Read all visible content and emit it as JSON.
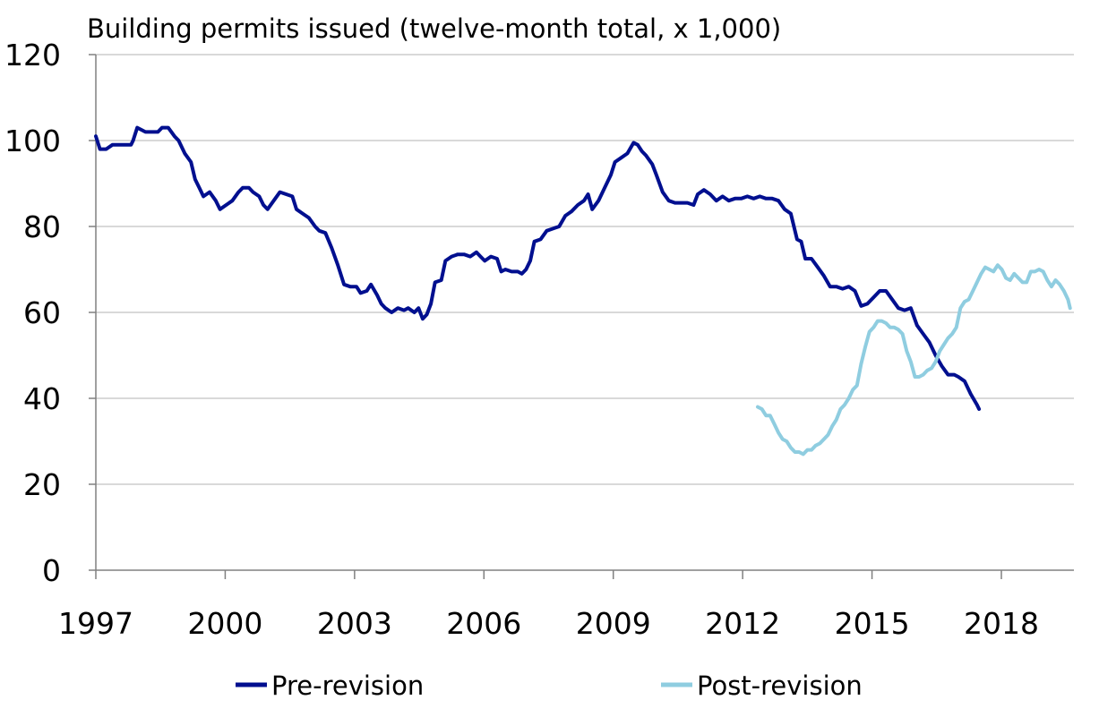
{
  "chart_data": {
    "type": "line",
    "title": "Building permits issued (twelve-month total, x 1,000)",
    "xlabel": "",
    "ylabel": "",
    "xlim": [
      1997,
      2019.8
    ],
    "ylim": [
      0,
      120
    ],
    "y_ticks": [
      "0",
      "20",
      "40",
      "60",
      "80",
      "100",
      "120"
    ],
    "x_ticks": [
      "1997",
      "2000",
      "2003",
      "2006",
      "2009",
      "2012",
      "2015",
      "2018"
    ],
    "grid": "horizontal",
    "legend_position": "bottom",
    "colors": {
      "pre": "#000f8f",
      "post": "#8fcde0",
      "grid": "#d9d9d9",
      "axis": "#808080"
    },
    "series": [
      {
        "name": "Pre-revision",
        "color": "#000f8f",
        "points": [
          [
            1997.0,
            101
          ],
          [
            1997.1,
            98
          ],
          [
            1997.25,
            98
          ],
          [
            1997.4,
            99
          ],
          [
            1997.55,
            99
          ],
          [
            1997.7,
            99
          ],
          [
            1997.85,
            99
          ],
          [
            1997.9,
            100
          ],
          [
            1998.0,
            103
          ],
          [
            1998.2,
            102
          ],
          [
            1998.35,
            102
          ],
          [
            1998.5,
            102
          ],
          [
            1998.6,
            103
          ],
          [
            1998.75,
            103
          ],
          [
            1998.9,
            101
          ],
          [
            1999.0,
            100
          ],
          [
            1999.15,
            97
          ],
          [
            1999.3,
            95
          ],
          [
            1999.4,
            91
          ],
          [
            1999.5,
            89
          ],
          [
            1999.6,
            87
          ],
          [
            1999.75,
            88
          ],
          [
            1999.9,
            86
          ],
          [
            2000.0,
            84
          ],
          [
            2000.15,
            85
          ],
          [
            2000.3,
            86
          ],
          [
            2000.45,
            88
          ],
          [
            2000.55,
            89
          ],
          [
            2000.7,
            89
          ],
          [
            2000.8,
            88
          ],
          [
            2000.95,
            87
          ],
          [
            2001.05,
            85
          ],
          [
            2001.15,
            84
          ],
          [
            2001.3,
            86
          ],
          [
            2001.45,
            88
          ],
          [
            2001.6,
            87.5
          ],
          [
            2001.75,
            87
          ],
          [
            2001.85,
            84
          ],
          [
            2002.0,
            83
          ],
          [
            2002.15,
            82
          ],
          [
            2002.3,
            80
          ],
          [
            2002.4,
            79
          ],
          [
            2002.55,
            78.5
          ],
          [
            2002.7,
            75
          ],
          [
            2002.85,
            71
          ],
          [
            2003.0,
            66.5
          ],
          [
            2003.15,
            66
          ],
          [
            2003.3,
            66
          ],
          [
            2003.4,
            64.5
          ],
          [
            2003.55,
            65
          ],
          [
            2003.65,
            66.5
          ],
          [
            2003.8,
            64
          ],
          [
            2003.9,
            62
          ],
          [
            2004.0,
            61
          ],
          [
            2004.15,
            60
          ],
          [
            2004.3,
            61
          ],
          [
            2004.45,
            60.5
          ],
          [
            2004.55,
            61
          ],
          [
            2004.7,
            60
          ],
          [
            2004.8,
            61
          ],
          [
            2004.9,
            58.5
          ],
          [
            2005.0,
            59.5
          ],
          [
            2005.1,
            62
          ],
          [
            2005.2,
            67
          ],
          [
            2005.35,
            67.5
          ],
          [
            2005.45,
            72
          ],
          [
            2005.6,
            73
          ],
          [
            2005.75,
            73.5
          ],
          [
            2005.9,
            73.5
          ],
          [
            2006.05,
            73
          ],
          [
            2006.2,
            74
          ],
          [
            2006.3,
            73
          ],
          [
            2006.4,
            72
          ],
          [
            2006.55,
            73
          ],
          [
            2006.7,
            72.5
          ],
          [
            2006.8,
            69.5
          ],
          [
            2006.9,
            70
          ],
          [
            2007.05,
            69.5
          ],
          [
            2007.2,
            69.5
          ],
          [
            2007.3,
            69
          ],
          [
            2007.4,
            70
          ],
          [
            2007.5,
            72
          ],
          [
            2007.6,
            76.5
          ],
          [
            2007.75,
            77
          ],
          [
            2007.9,
            79
          ],
          [
            2008.05,
            79.5
          ],
          [
            2008.2,
            80
          ],
          [
            2008.35,
            82.5
          ],
          [
            2008.5,
            83.5
          ],
          [
            2008.65,
            85
          ],
          [
            2008.8,
            86
          ],
          [
            2008.9,
            87.5
          ],
          [
            2009.0,
            84
          ],
          [
            2009.15,
            86
          ],
          [
            2009.3,
            89
          ],
          [
            2009.45,
            92
          ],
          [
            2009.55,
            95
          ],
          [
            2009.7,
            96
          ],
          [
            2009.85,
            97
          ],
          [
            2010.0,
            99.5
          ],
          [
            2010.1,
            99
          ],
          [
            2010.2,
            97.5
          ],
          [
            2010.3,
            96.5
          ],
          [
            2010.45,
            94.5
          ],
          [
            2010.55,
            92
          ],
          [
            2010.7,
            88
          ],
          [
            2010.85,
            86
          ],
          [
            2011.0,
            85.5
          ],
          [
            2011.15,
            85.5
          ],
          [
            2011.3,
            85.5
          ],
          [
            2011.45,
            85
          ],
          [
            2011.55,
            87.5
          ],
          [
            2011.7,
            88.5
          ],
          [
            2011.85,
            87.5
          ],
          [
            2012.0,
            86
          ],
          [
            2012.15,
            87
          ],
          [
            2012.3,
            86
          ],
          [
            2012.45,
            86.5
          ],
          [
            2012.6,
            86.5
          ],
          [
            2012.75,
            87
          ],
          [
            2012.9,
            86.5
          ],
          [
            2013.05,
            87
          ],
          [
            2013.2,
            86.5
          ],
          [
            2013.35,
            86.5
          ],
          [
            2013.5,
            86
          ],
          [
            2013.65,
            84
          ],
          [
            2013.8,
            83
          ],
          [
            2013.95,
            77
          ],
          [
            2014.05,
            76.5
          ],
          [
            2014.15,
            72.5
          ],
          [
            2014.3,
            72.5
          ],
          [
            2014.45,
            70.5
          ],
          [
            2014.6,
            68.5
          ],
          [
            2014.75,
            66
          ],
          [
            2014.9,
            66
          ],
          [
            2015.05,
            65.5
          ],
          [
            2015.2,
            66
          ],
          [
            2015.35,
            65
          ],
          [
            2015.5,
            61.5
          ],
          [
            2015.65,
            62
          ],
          [
            2015.8,
            63.5
          ],
          [
            2015.95,
            65
          ],
          [
            2016.1,
            65
          ],
          [
            2016.25,
            63
          ],
          [
            2016.4,
            61
          ],
          [
            2016.55,
            60.5
          ],
          [
            2016.7,
            61
          ],
          [
            2016.85,
            57
          ],
          [
            2017.0,
            55
          ],
          [
            2017.15,
            53
          ],
          [
            2017.3,
            50
          ],
          [
            2017.45,
            47.5
          ],
          [
            2017.6,
            45.5
          ],
          [
            2017.75,
            45.5
          ],
          [
            2017.85,
            45
          ],
          [
            2018.0,
            44
          ],
          [
            2018.15,
            41
          ],
          [
            2018.3,
            38.5
          ],
          [
            2018.35,
            37.5
          ]
        ]
      },
      {
        "name": "Post-revision",
        "color": "#8fcde0",
        "points": [
          [
            2013.0,
            38
          ],
          [
            2013.1,
            37.5
          ],
          [
            2013.2,
            36
          ],
          [
            2013.3,
            36
          ],
          [
            2013.4,
            34
          ],
          [
            2013.5,
            32
          ],
          [
            2013.6,
            30.5
          ],
          [
            2013.7,
            30
          ],
          [
            2013.8,
            28.5
          ],
          [
            2013.9,
            27.5
          ],
          [
            2014.0,
            27.5
          ],
          [
            2014.1,
            27
          ],
          [
            2014.2,
            28
          ],
          [
            2014.3,
            28
          ],
          [
            2014.4,
            29
          ],
          [
            2014.5,
            29.5
          ],
          [
            2014.6,
            30.5
          ],
          [
            2014.7,
            31.5
          ],
          [
            2014.8,
            33.5
          ],
          [
            2014.9,
            35
          ],
          [
            2015.0,
            37.5
          ],
          [
            2015.1,
            38.5
          ],
          [
            2015.2,
            40
          ],
          [
            2015.3,
            42
          ],
          [
            2015.4,
            43
          ],
          [
            2015.5,
            48
          ],
          [
            2015.6,
            52
          ],
          [
            2015.7,
            55.5
          ],
          [
            2015.8,
            56.5
          ],
          [
            2015.9,
            58
          ],
          [
            2016.0,
            58
          ],
          [
            2016.1,
            57.5
          ],
          [
            2016.2,
            56.5
          ],
          [
            2016.3,
            56.5
          ],
          [
            2016.4,
            56
          ],
          [
            2016.5,
            55
          ],
          [
            2016.6,
            51
          ],
          [
            2016.7,
            48.5
          ],
          [
            2016.8,
            45
          ],
          [
            2016.9,
            45
          ],
          [
            2017.0,
            45.5
          ],
          [
            2017.1,
            46.5
          ],
          [
            2017.2,
            47
          ],
          [
            2017.3,
            48.5
          ],
          [
            2017.4,
            51
          ],
          [
            2017.5,
            52.5
          ],
          [
            2017.6,
            54
          ],
          [
            2017.7,
            55
          ],
          [
            2017.8,
            56.5
          ],
          [
            2017.9,
            61
          ],
          [
            2018.0,
            62.5
          ],
          [
            2018.1,
            63
          ],
          [
            2018.2,
            65
          ],
          [
            2018.3,
            67
          ],
          [
            2018.4,
            69
          ],
          [
            2018.5,
            70.5
          ],
          [
            2018.6,
            70
          ],
          [
            2018.7,
            69.5
          ],
          [
            2018.8,
            71
          ],
          [
            2018.9,
            70
          ],
          [
            2019.0,
            68
          ],
          [
            2019.1,
            67.5
          ],
          [
            2019.2,
            69
          ],
          [
            2019.3,
            68
          ],
          [
            2019.4,
            67
          ],
          [
            2019.5,
            67
          ],
          [
            2019.6,
            69.5
          ],
          [
            2019.7,
            69.5
          ],
          [
            2019.8,
            70
          ],
          [
            2019.9,
            69.5
          ],
          [
            2020.0,
            67.5
          ],
          [
            2020.1,
            66
          ],
          [
            2020.2,
            67.5
          ],
          [
            2020.3,
            66.5
          ],
          [
            2020.4,
            65
          ],
          [
            2020.5,
            63
          ],
          [
            2020.55,
            61
          ]
        ]
      }
    ]
  }
}
